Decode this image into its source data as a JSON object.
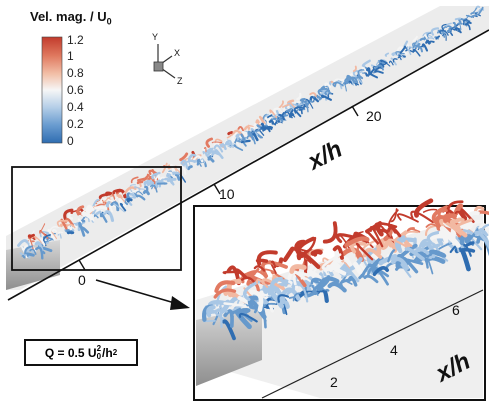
{
  "colorbar": {
    "title_main": "Vel. mag. / U",
    "title_sub": "0",
    "ticks": [
      "1.2",
      "1",
      "0.8",
      "0.6",
      "0.4",
      "0.2",
      "0"
    ],
    "colors": [
      "#c23b2c",
      "#e27a62",
      "#f2b9a2",
      "#f4f4f4",
      "#a9c7e5",
      "#6699cc",
      "#2f6db1"
    ]
  },
  "triad": {
    "y": "Y",
    "x": "X",
    "z": "Z"
  },
  "main_axis": {
    "ticks": [
      "0",
      "10",
      "20"
    ],
    "label": "x/h"
  },
  "inset_axis": {
    "ticks": [
      "2",
      "4",
      "6"
    ],
    "label": "x/h"
  },
  "criterion": {
    "prefix": "Q = 0.5 U",
    "sub": "0",
    "sup": "2",
    "suffix": "/h",
    "sup2": "2"
  },
  "style": {
    "red": "#c23b2c",
    "blue": "#3b78c0",
    "wall": "#9a9a9a"
  }
}
